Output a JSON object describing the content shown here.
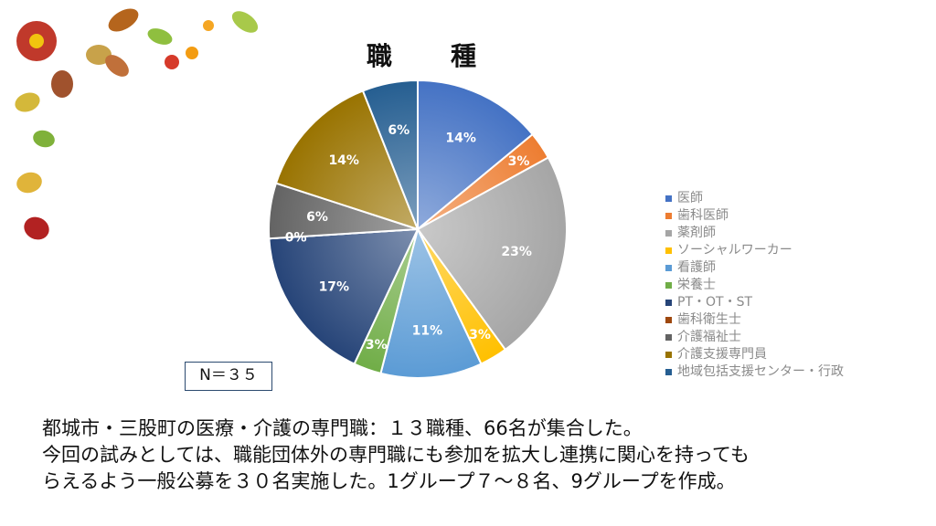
{
  "chart_data": {
    "type": "pie",
    "title": "職　種",
    "categories": [
      "医師",
      "歯科医師",
      "薬剤師",
      "ソーシャルワーカー",
      "看護師",
      "栄養士",
      "PT・OT・ST",
      "歯科衛生士",
      "介護福祉士",
      "介護支援専門員",
      "地域包括支援センター・行政"
    ],
    "values": [
      14,
      3,
      23,
      3,
      11,
      3,
      17,
      0,
      6,
      14,
      6
    ],
    "unit": "%",
    "legend_position": "right",
    "colors": [
      "#4472c4",
      "#ed7d31",
      "#a5a5a5",
      "#ffc000",
      "#5b9bd5",
      "#70ad47",
      "#264478",
      "#9e480e",
      "#636363",
      "#997300",
      "#255e91"
    ]
  },
  "n_label": "N＝３５",
  "caption": [
    "都城市・三股町の医療・介護の専門職：１３職種、66名が集合した。",
    "今回の試みとしては、職能団体外の専門職にも参加を拡大し連携に関心を持っても",
    "らえるよう一般公募を３０名実施した。1グループ７～８名、9グループを作成。"
  ]
}
